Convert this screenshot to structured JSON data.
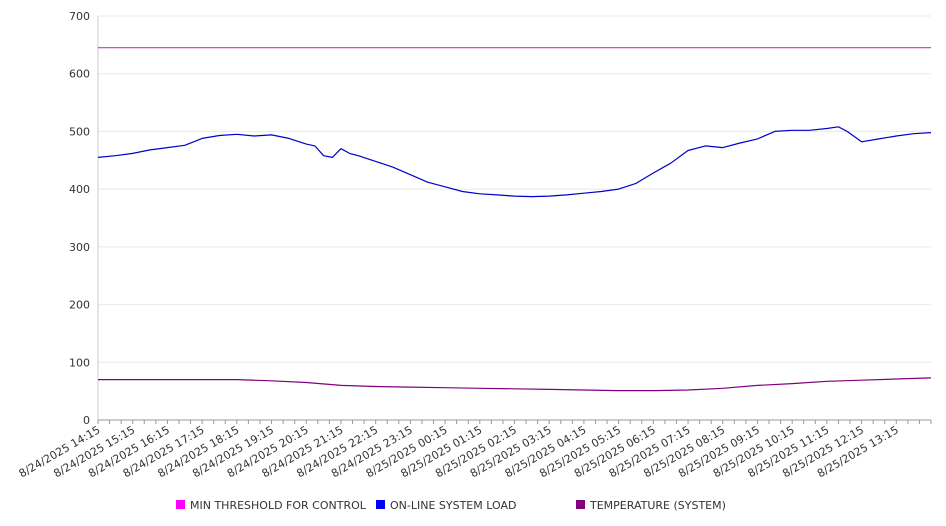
{
  "chart_data": {
    "type": "line",
    "title": "",
    "xlabel": "",
    "ylabel": "",
    "ylim": [
      0,
      700
    ],
    "yticks": [
      0,
      100,
      200,
      300,
      400,
      500,
      600,
      700
    ],
    "grid": true,
    "legend_position": "bottom",
    "x_tick_labels": [
      "8/24/2025 14:15",
      "8/24/2025 15:15",
      "8/24/2025 16:15",
      "8/24/2025 17:15",
      "8/24/2025 18:15",
      "8/24/2025 19:15",
      "8/24/2025 20:15",
      "8/24/2025 21:15",
      "8/24/2025 22:15",
      "8/24/2025 23:15",
      "8/25/2025 00:15",
      "8/25/2025 01:15",
      "8/25/2025 02:15",
      "8/25/2025 03:15",
      "8/25/2025 04:15",
      "8/25/2025 05:15",
      "8/25/2025 06:15",
      "8/25/2025 07:15",
      "8/25/2025 08:15",
      "8/25/2025 09:15",
      "8/25/2025 10:15",
      "8/25/2025 11:15",
      "8/25/2025 12:15",
      "8/25/2025 13:15"
    ],
    "x_start": "8/24/2025 14:15",
    "x_end": "8/25/2025 14:15",
    "series": [
      {
        "name": "MIN THRESHOLD FOR CONTROL",
        "color": "#cc33cc",
        "legend_color": "#ff00ff",
        "x": [
          "8/24/2025 14:15",
          "8/25/2025 14:15"
        ],
        "values": [
          645,
          645
        ]
      },
      {
        "name": "ON-LINE SYSTEM LOAD",
        "color": "#0000cc",
        "legend_color": "#0000ff",
        "x": [
          "8/24/2025 14:15",
          "8/24/2025 14:45",
          "8/24/2025 15:15",
          "8/24/2025 15:45",
          "8/24/2025 16:15",
          "8/24/2025 16:45",
          "8/24/2025 17:15",
          "8/24/2025 17:45",
          "8/24/2025 18:15",
          "8/24/2025 18:45",
          "8/24/2025 19:15",
          "8/24/2025 19:45",
          "8/24/2025 20:15",
          "8/24/2025 20:30",
          "8/24/2025 20:45",
          "8/24/2025 21:00",
          "8/24/2025 21:15",
          "8/24/2025 21:30",
          "8/24/2025 21:45",
          "8/24/2025 22:15",
          "8/24/2025 22:45",
          "8/24/2025 23:15",
          "8/24/2025 23:45",
          "8/25/2025 00:15",
          "8/25/2025 00:45",
          "8/25/2025 01:15",
          "8/25/2025 01:45",
          "8/25/2025 02:15",
          "8/25/2025 02:45",
          "8/25/2025 03:15",
          "8/25/2025 03:45",
          "8/25/2025 04:15",
          "8/25/2025 04:45",
          "8/25/2025 05:15",
          "8/25/2025 05:45",
          "8/25/2025 06:15",
          "8/25/2025 06:45",
          "8/25/2025 07:15",
          "8/25/2025 07:45",
          "8/25/2025 08:15",
          "8/25/2025 08:45",
          "8/25/2025 09:15",
          "8/25/2025 09:45",
          "8/25/2025 10:15",
          "8/25/2025 10:45",
          "8/25/2025 11:15",
          "8/25/2025 11:35",
          "8/25/2025 11:50",
          "8/25/2025 12:15",
          "8/25/2025 12:45",
          "8/25/2025 13:15",
          "8/25/2025 13:45",
          "8/25/2025 14:15"
        ],
        "values": [
          455,
          458,
          462,
          468,
          472,
          476,
          488,
          493,
          495,
          492,
          494,
          488,
          478,
          475,
          458,
          455,
          470,
          462,
          458,
          448,
          438,
          425,
          412,
          404,
          396,
          392,
          390,
          388,
          387,
          388,
          390,
          393,
          396,
          400,
          410,
          428,
          445,
          467,
          475,
          472,
          480,
          487,
          500,
          502,
          502,
          505,
          508,
          500,
          482,
          487,
          492,
          496,
          498
        ]
      },
      {
        "name": "TEMPERATURE (SYSTEM)",
        "color": "#800080",
        "legend_color": "#800080",
        "x": [
          "8/24/2025 14:15",
          "8/24/2025 15:15",
          "8/24/2025 16:15",
          "8/24/2025 17:15",
          "8/24/2025 18:15",
          "8/24/2025 19:15",
          "8/24/2025 20:15",
          "8/24/2025 21:15",
          "8/24/2025 22:15",
          "8/24/2025 23:15",
          "8/25/2025 00:15",
          "8/25/2025 01:15",
          "8/25/2025 02:15",
          "8/25/2025 03:15",
          "8/25/2025 04:15",
          "8/25/2025 05:15",
          "8/25/2025 06:15",
          "8/25/2025 07:15",
          "8/25/2025 08:15",
          "8/25/2025 09:15",
          "8/25/2025 10:15",
          "8/25/2025 11:15",
          "8/25/2025 12:15",
          "8/25/2025 13:15",
          "8/25/2025 14:15"
        ],
        "values": [
          70,
          70,
          70,
          70,
          70,
          68,
          65,
          60,
          58,
          57,
          56,
          55,
          54,
          53,
          52,
          51,
          51,
          52,
          55,
          60,
          63,
          67,
          69,
          71,
          73
        ]
      }
    ]
  }
}
